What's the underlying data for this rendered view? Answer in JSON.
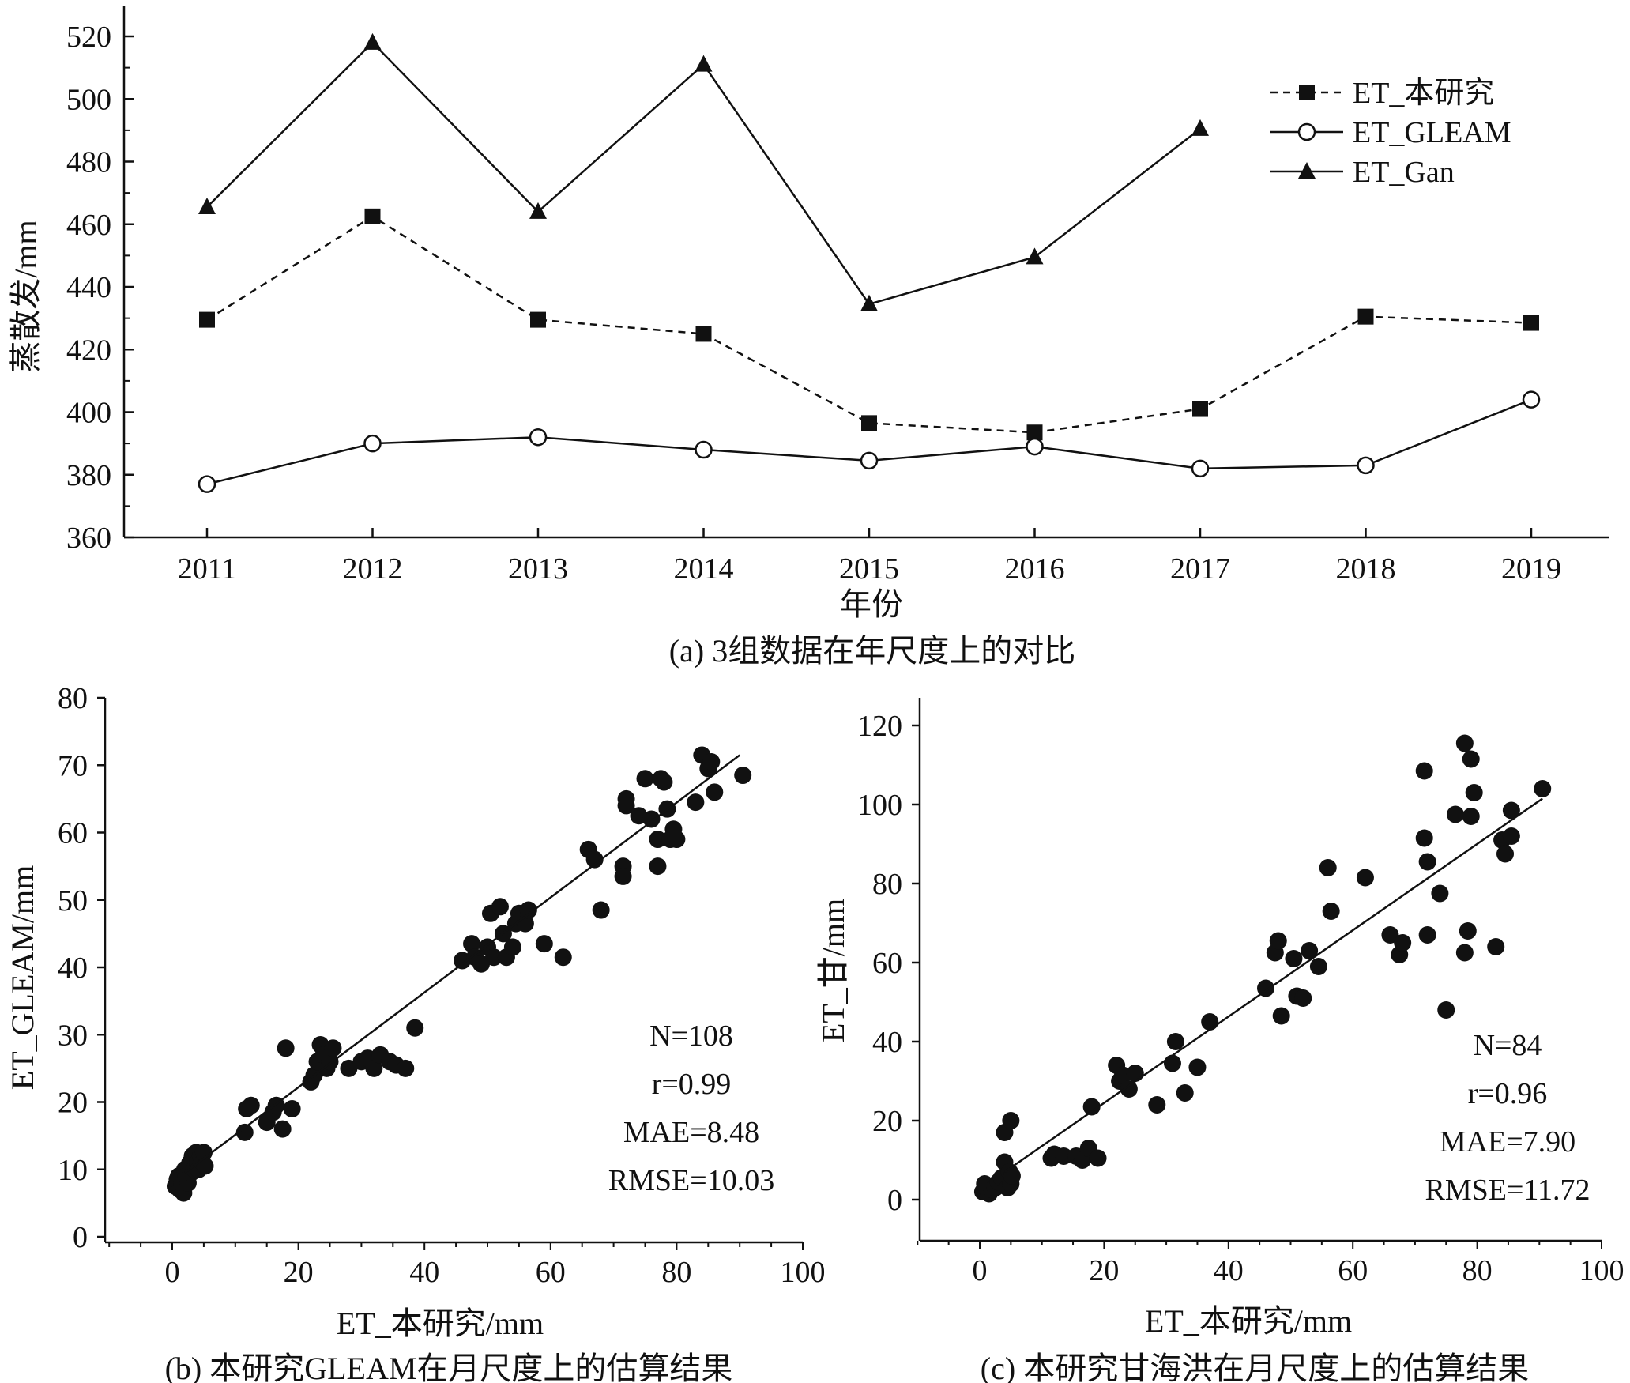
{
  "chart_data": [
    {
      "id": "a",
      "type": "line",
      "caption": "(a) 3组数据在年尺度上的对比",
      "xlabel": "年份",
      "ylabel": "蒸散发/mm",
      "categories": [
        "2011",
        "2012",
        "2013",
        "2014",
        "2015",
        "2016",
        "2017",
        "2018",
        "2019"
      ],
      "ylim": [
        360,
        530
      ],
      "yticks": [
        360,
        380,
        400,
        420,
        440,
        460,
        480,
        500,
        520
      ],
      "legend_position": "top-right",
      "grid": false,
      "series": [
        {
          "name": "ET_本研究",
          "marker": "filled-square",
          "line": "dashed",
          "values": [
            429.5,
            462.5,
            429.5,
            425,
            396.5,
            393.5,
            401,
            430.5,
            428.5
          ]
        },
        {
          "name": "ET_GLEAM",
          "marker": "open-circle",
          "line": "solid",
          "values": [
            377,
            390,
            392,
            388,
            384.5,
            389,
            382,
            383,
            404
          ]
        },
        {
          "name": "ET_Gan",
          "marker": "filled-triangle",
          "line": "solid",
          "values": [
            465.5,
            518,
            464,
            511,
            434.5,
            449.5,
            490.5,
            null,
            null
          ]
        }
      ]
    },
    {
      "id": "b",
      "type": "scatter",
      "caption": "(b) 本研究GLEAM在月尺度上的估算结果",
      "xlabel": "ET_本研究/mm",
      "ylabel": "ET_GLEAM/mm",
      "xlim": [
        -10,
        100
      ],
      "ylim": [
        0,
        80
      ],
      "xticks": [
        0,
        20,
        40,
        60,
        80,
        100
      ],
      "yticks": [
        0,
        10,
        20,
        30,
        40,
        50,
        60,
        70,
        80
      ],
      "stats": [
        "N=108",
        "r=0.99",
        "MAE=8.48",
        "RMSE=10.03"
      ],
      "fit_line": [
        [
          2,
          9.5
        ],
        [
          90,
          71.5
        ]
      ],
      "points": [
        [
          0.5,
          7.5
        ],
        [
          0.8,
          8.5
        ],
        [
          1,
          9
        ],
        [
          1.2,
          7
        ],
        [
          1.5,
          8
        ],
        [
          1.8,
          6.5
        ],
        [
          2,
          10
        ],
        [
          2.2,
          9
        ],
        [
          2.5,
          8
        ],
        [
          2.8,
          11
        ],
        [
          3,
          9.5
        ],
        [
          3.2,
          12
        ],
        [
          3.5,
          10
        ],
        [
          3.8,
          12.5
        ],
        [
          4,
          11
        ],
        [
          4.2,
          10
        ],
        [
          4.5,
          12
        ],
        [
          4.8,
          11
        ],
        [
          5,
          12.5
        ],
        [
          5.2,
          10.5
        ],
        [
          11.5,
          15.5
        ],
        [
          11.8,
          19
        ],
        [
          12.5,
          19.5
        ],
        [
          15,
          17
        ],
        [
          16,
          18.5
        ],
        [
          16.5,
          19.5
        ],
        [
          17.5,
          16
        ],
        [
          18,
          28
        ],
        [
          19,
          19
        ],
        [
          22,
          23
        ],
        [
          22.5,
          24
        ],
        [
          23,
          26
        ],
        [
          23.5,
          28.5
        ],
        [
          24,
          27
        ],
        [
          24.5,
          25
        ],
        [
          25,
          26
        ],
        [
          25.5,
          28
        ],
        [
          28,
          25
        ],
        [
          30,
          26
        ],
        [
          31,
          26.5
        ],
        [
          32,
          25
        ],
        [
          33,
          27
        ],
        [
          34.5,
          26
        ],
        [
          35.5,
          25.5
        ],
        [
          37,
          25
        ],
        [
          38.5,
          31
        ],
        [
          46,
          41
        ],
        [
          47.5,
          43.5
        ],
        [
          48,
          41.5
        ],
        [
          49,
          40.5
        ],
        [
          50,
          43
        ],
        [
          50.5,
          48
        ],
        [
          51,
          41.5
        ],
        [
          52,
          49
        ],
        [
          52.5,
          45
        ],
        [
          53,
          41.5
        ],
        [
          54,
          43
        ],
        [
          54.5,
          46.5
        ],
        [
          55,
          48
        ],
        [
          56,
          46.5
        ],
        [
          56.5,
          48.5
        ],
        [
          59,
          43.5
        ],
        [
          62,
          41.5
        ],
        [
          66,
          57.5
        ],
        [
          67,
          56
        ],
        [
          68,
          48.5
        ],
        [
          71.5,
          55
        ],
        [
          71.5,
          53.5
        ],
        [
          72,
          65
        ],
        [
          72,
          64
        ],
        [
          74,
          62.5
        ],
        [
          75,
          68
        ],
        [
          76,
          62
        ],
        [
          77,
          55
        ],
        [
          77,
          59
        ],
        [
          77.5,
          68
        ],
        [
          78,
          67.5
        ],
        [
          78.5,
          63.5
        ],
        [
          79,
          59
        ],
        [
          79.5,
          60.5
        ],
        [
          80,
          59
        ],
        [
          83,
          64.5
        ],
        [
          84,
          71.5
        ],
        [
          85,
          69.5
        ],
        [
          85.5,
          70.5
        ],
        [
          86,
          66
        ],
        [
          90.5,
          68.5
        ]
      ]
    },
    {
      "id": "c",
      "type": "scatter",
      "caption": "(c) 本研究甘海洪在月尺度上的估算结果",
      "xlabel": "ET_本研究/mm",
      "ylabel": "ET_甘/mm",
      "xlim": [
        -10,
        100
      ],
      "ylim": [
        -10,
        130
      ],
      "xticks": [
        0,
        20,
        40,
        60,
        80,
        100
      ],
      "yticks": [
        0,
        20,
        40,
        60,
        80,
        100,
        120
      ],
      "stats": [
        "N=84",
        "r=0.96",
        "MAE=7.90",
        "RMSE=11.72"
      ],
      "fit_line": [
        [
          4,
          7
        ],
        [
          90.5,
          101.5
        ]
      ],
      "points": [
        [
          0.5,
          2
        ],
        [
          0.8,
          4
        ],
        [
          1,
          3
        ],
        [
          1.5,
          1.5
        ],
        [
          2,
          2.5
        ],
        [
          2.5,
          3
        ],
        [
          3,
          4.5
        ],
        [
          3.5,
          5.5
        ],
        [
          4,
          17
        ],
        [
          4,
          9.5
        ],
        [
          4.5,
          3
        ],
        [
          4.8,
          7
        ],
        [
          5,
          20
        ],
        [
          5,
          4
        ],
        [
          5.2,
          6
        ],
        [
          11.5,
          10.5
        ],
        [
          12,
          11.5
        ],
        [
          13.5,
          11
        ],
        [
          15.5,
          11
        ],
        [
          16.5,
          10
        ],
        [
          17.5,
          13
        ],
        [
          18,
          23.5
        ],
        [
          19,
          10.5
        ],
        [
          22,
          34
        ],
        [
          22.5,
          30
        ],
        [
          23,
          31.5
        ],
        [
          24,
          28
        ],
        [
          25,
          32
        ],
        [
          28.5,
          24
        ],
        [
          31,
          34.5
        ],
        [
          31.5,
          40
        ],
        [
          33,
          27
        ],
        [
          35,
          33.5
        ],
        [
          37,
          45
        ],
        [
          46,
          53.5
        ],
        [
          47.5,
          62.5
        ],
        [
          48,
          65.5
        ],
        [
          48.5,
          46.5
        ],
        [
          50.5,
          61
        ],
        [
          51,
          51.5
        ],
        [
          52,
          51
        ],
        [
          53,
          63
        ],
        [
          54.5,
          59
        ],
        [
          56,
          84
        ],
        [
          56.5,
          73
        ],
        [
          62,
          81.5
        ],
        [
          66,
          67
        ],
        [
          67.5,
          62
        ],
        [
          68,
          65
        ],
        [
          71.5,
          91.5
        ],
        [
          71.5,
          108.5
        ],
        [
          72,
          85.5
        ],
        [
          72,
          67
        ],
        [
          74,
          77.5
        ],
        [
          75,
          48
        ],
        [
          76.5,
          97.5
        ],
        [
          78,
          115.5
        ],
        [
          78,
          62.5
        ],
        [
          78.5,
          68
        ],
        [
          79,
          97
        ],
        [
          79,
          111.5
        ],
        [
          79.5,
          103
        ],
        [
          83,
          64
        ],
        [
          84,
          91
        ],
        [
          84.5,
          87.5
        ],
        [
          85.5,
          92
        ],
        [
          85.5,
          98.5
        ],
        [
          90.5,
          104
        ]
      ]
    }
  ]
}
